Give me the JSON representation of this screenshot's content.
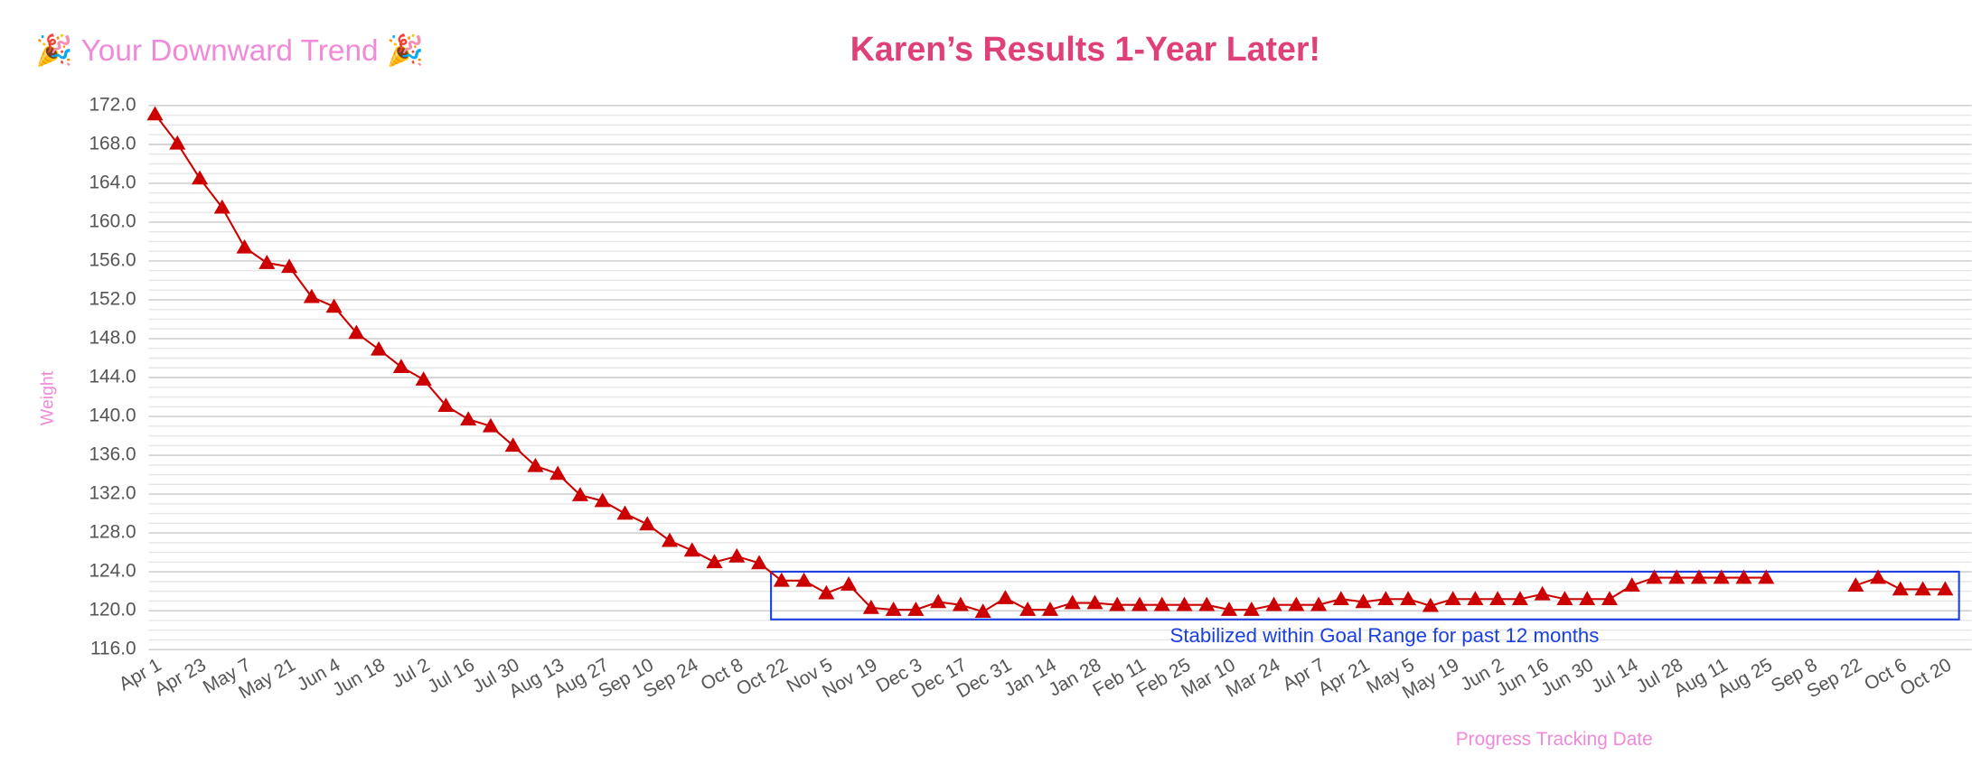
{
  "chart_data": {
    "type": "line",
    "header": "🎉 Your Downward Trend 🎉",
    "title": "Karen’s Results 1-Year Later!",
    "y_label": "Weight",
    "x_label": "Progress Tracking Date",
    "annotation": "Stabilized within Goal Range for past 12 months",
    "categories": [
      "Apr 1",
      null,
      "Apr 23",
      null,
      "May 7",
      null,
      "May 21",
      null,
      "Jun 4",
      null,
      "Jun 18",
      null,
      "Jul 2",
      null,
      "Jul 16",
      null,
      "Jul 30",
      null,
      "Aug 13",
      null,
      "Aug 27",
      null,
      "Sep 10",
      null,
      "Sep 24",
      null,
      "Oct 8",
      null,
      "Oct 22",
      null,
      "Nov 5",
      null,
      "Nov 19",
      null,
      "Dec 3",
      null,
      "Dec 17",
      null,
      "Dec 31",
      null,
      "Jan 14",
      null,
      "Jan 28",
      null,
      "Feb 11",
      null,
      "Feb 25",
      null,
      "Mar 10",
      null,
      "Mar 24",
      null,
      "Apr 7",
      null,
      "Apr 21",
      null,
      "May 5",
      null,
      "May 19",
      null,
      "Jun 2",
      null,
      "Jun 16",
      null,
      "Jun 30",
      null,
      "Jul 14",
      null,
      "Jul 28",
      null,
      "Aug 11",
      null,
      "Aug 25",
      null,
      "Sep 8",
      null,
      "Sep 22",
      null,
      "Oct 6",
      null,
      "Oct 20"
    ],
    "series": [
      {
        "name": "Weight",
        "color": "#cc0000",
        "values": [
          171.1,
          168.1,
          164.5,
          161.5,
          157.4,
          155.8,
          155.4,
          152.3,
          151.3,
          148.6,
          146.9,
          145.1,
          143.8,
          141.1,
          139.7,
          139.0,
          137.0,
          134.9,
          134.1,
          131.9,
          131.3,
          130.0,
          128.9,
          127.2,
          126.2,
          125.0,
          125.6,
          124.9,
          123.1,
          123.1,
          121.8,
          122.7,
          120.3,
          120.1,
          120.1,
          120.9,
          120.6,
          119.9,
          121.3,
          120.1,
          120.1,
          120.8,
          120.8,
          120.6,
          120.6,
          120.6,
          120.6,
          120.6,
          120.1,
          120.1,
          120.6,
          120.6,
          120.6,
          121.2,
          120.9,
          121.2,
          121.2,
          120.5,
          121.2,
          121.2,
          121.2,
          121.2,
          121.7,
          121.2,
          121.2,
          121.2,
          122.6,
          123.4,
          123.4,
          123.4,
          123.4,
          123.4,
          123.4,
          null,
          null,
          null,
          122.6,
          123.4,
          122.2,
          122.2,
          122.2
        ]
      }
    ],
    "ylim": [
      116,
      172
    ],
    "yticks": [
      {
        "value": 116,
        "label": "116.0"
      },
      {
        "value": 120,
        "label": "120.0"
      },
      {
        "value": 124,
        "label": "124.0"
      },
      {
        "value": 128,
        "label": "128.0"
      },
      {
        "value": 132,
        "label": "132.0"
      },
      {
        "value": 136,
        "label": "136.0"
      },
      {
        "value": 140,
        "label": "140.0"
      },
      {
        "value": 144,
        "label": "144.0"
      },
      {
        "value": 148,
        "label": "148.0"
      },
      {
        "value": 152,
        "label": "152.0"
      },
      {
        "value": 156,
        "label": "156.0"
      },
      {
        "value": 160,
        "label": "160.0"
      },
      {
        "value": 164,
        "label": "164.0"
      },
      {
        "value": 168,
        "label": "168.0"
      },
      {
        "value": 172,
        "label": "172.0"
      }
    ],
    "grid": true,
    "minor_grid": true,
    "marker": "triangle"
  }
}
